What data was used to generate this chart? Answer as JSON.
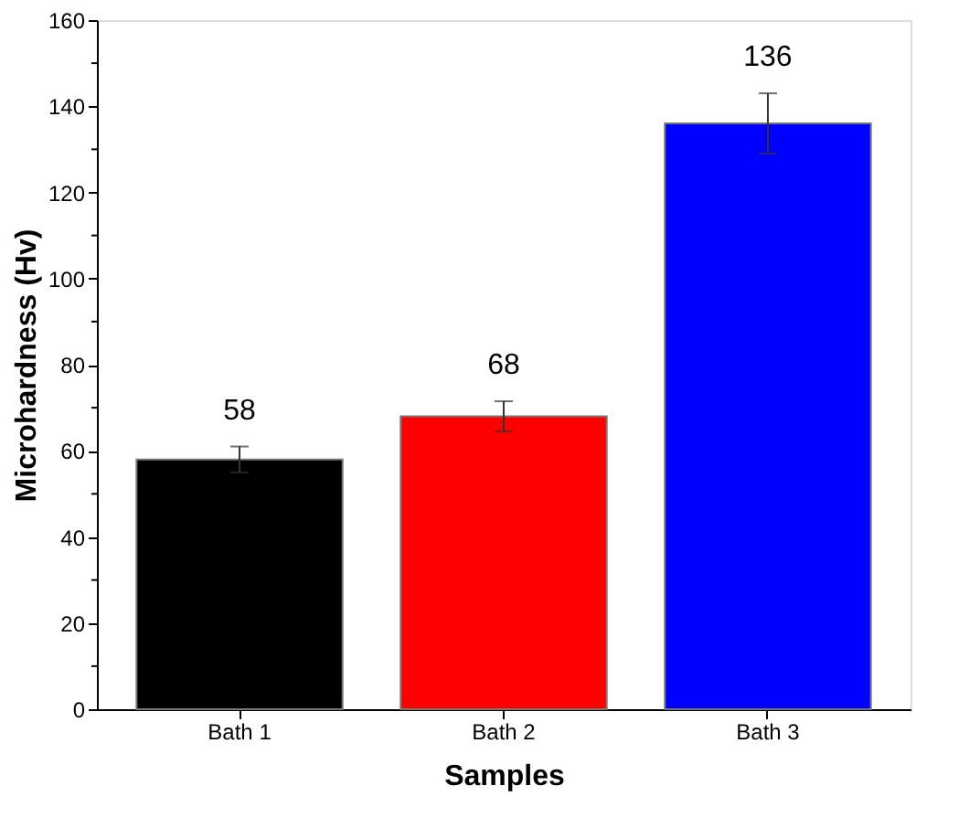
{
  "chart_data": {
    "type": "bar",
    "xlabel": "Samples",
    "ylabel": "Microhardness (Hv)",
    "categories": [
      "Bath 1",
      "Bath 2",
      "Bath 3"
    ],
    "values": [
      58,
      68,
      136
    ],
    "colors": [
      "#000000",
      "#ff0000",
      "#0000ff"
    ],
    "errors": [
      3,
      3.5,
      7
    ],
    "data_labels": true,
    "ylim": [
      0,
      160
    ],
    "yticks": [
      0,
      {
        "value": 10,
        "label": null
      },
      20,
      {
        "value": 30,
        "label": null
      },
      40,
      {
        "value": 50,
        "label": null
      },
      60,
      {
        "value": 70,
        "label": null
      },
      80,
      {
        "value": 90,
        "label": null
      },
      100,
      {
        "value": 110,
        "label": null
      },
      120,
      {
        "value": 130,
        "label": null
      },
      140,
      {
        "value": 150,
        "label": null
      },
      160
    ],
    "grid": false
  }
}
